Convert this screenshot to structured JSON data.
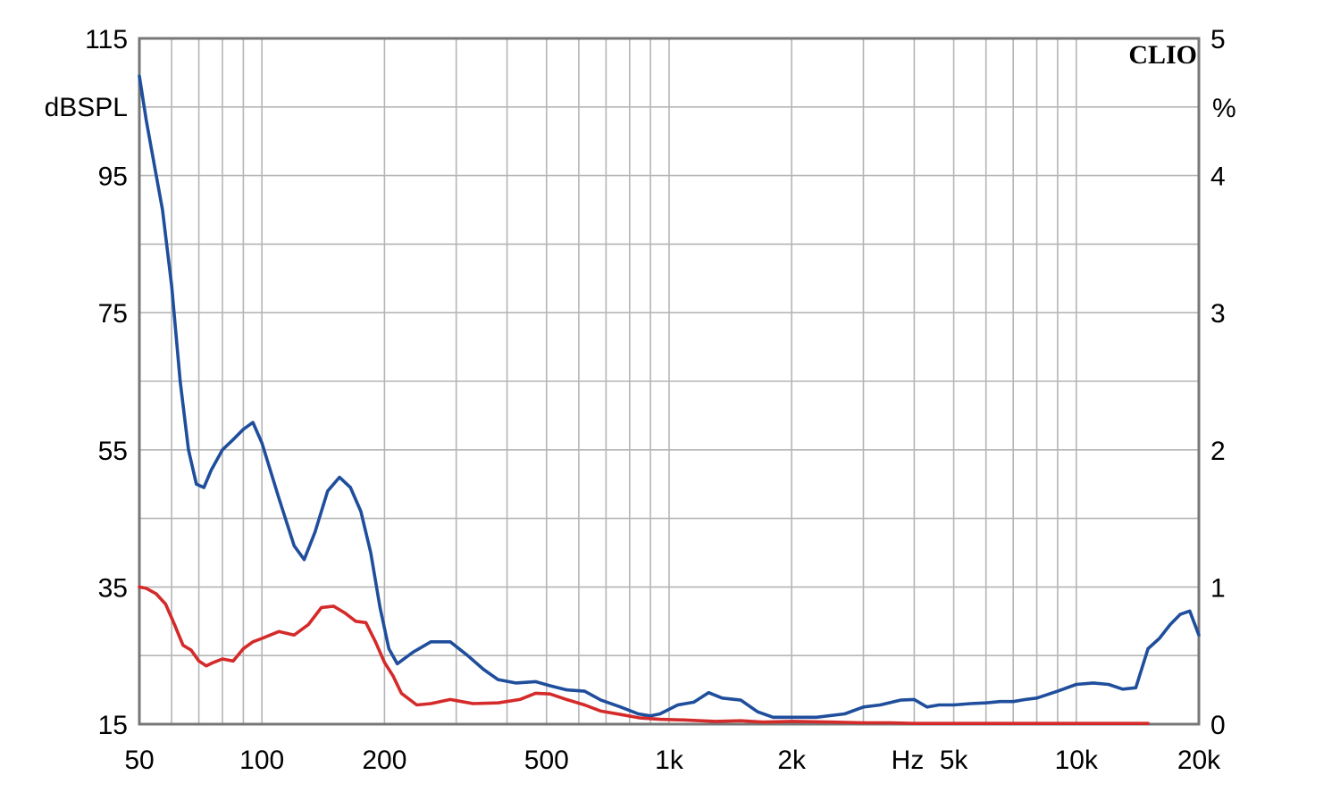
{
  "chart_data": {
    "type": "line",
    "x_scale": "log",
    "xlim": [
      50,
      20000
    ],
    "ylim_left": [
      15,
      115
    ],
    "ylim_right": [
      0,
      5
    ],
    "grid": true,
    "brand_label": "CLIO",
    "left_unit_label": "dBSPL",
    "right_unit_label": "%",
    "x_unit_label": "Hz",
    "x_ticks": [
      {
        "value": 50,
        "label": "50"
      },
      {
        "value": 100,
        "label": "100"
      },
      {
        "value": 200,
        "label": "200"
      },
      {
        "value": 500,
        "label": "500"
      },
      {
        "value": 1000,
        "label": "1k"
      },
      {
        "value": 2000,
        "label": "2k"
      },
      {
        "value": 5000,
        "label": "5k"
      },
      {
        "value": 10000,
        "label": "10k"
      },
      {
        "value": 20000,
        "label": "20k"
      }
    ],
    "y_left_ticks": [
      {
        "value": 115,
        "label": "115"
      },
      {
        "value": 95,
        "label": "95"
      },
      {
        "value": 75,
        "label": "75"
      },
      {
        "value": 55,
        "label": "55"
      },
      {
        "value": 35,
        "label": "35"
      },
      {
        "value": 15,
        "label": "15"
      }
    ],
    "y_right_ticks": [
      {
        "value": 5,
        "label": "5"
      },
      {
        "value": 4,
        "label": "4"
      },
      {
        "value": 3,
        "label": "3"
      },
      {
        "value": 2,
        "label": "2"
      },
      {
        "value": 1,
        "label": "1"
      },
      {
        "value": 0,
        "label": "0"
      }
    ],
    "series": [
      {
        "color": "#1f4e9c",
        "axis": "left",
        "x": [
          50,
          52,
          55,
          57,
          60,
          63,
          66,
          69,
          72,
          75,
          80,
          85,
          90,
          95,
          100,
          110,
          120,
          127,
          135,
          145,
          155,
          165,
          175,
          185,
          195,
          205,
          215,
          235,
          260,
          290,
          320,
          350,
          380,
          420,
          470,
          510,
          560,
          620,
          680,
          760,
          840,
          900,
          950,
          1050,
          1150,
          1250,
          1350,
          1500,
          1650,
          1800,
          2000,
          2300,
          2700,
          3000,
          3300,
          3700,
          4000,
          4300,
          4600,
          5000,
          5500,
          6000,
          6500,
          7000,
          7500,
          8000,
          9000,
          10000,
          11000,
          12000,
          13000,
          14000,
          15000,
          16000,
          17000,
          18000,
          19000,
          20000
        ],
        "y": [
          109.5,
          103,
          95,
          90,
          79,
          65,
          55,
          50,
          49.5,
          52,
          55,
          56.5,
          58,
          59,
          56,
          48,
          41,
          39,
          43,
          49,
          51,
          49.5,
          46,
          40,
          32,
          26,
          23.8,
          25.5,
          27,
          27,
          25,
          23,
          21.5,
          21,
          21.2,
          20.6,
          20,
          19.8,
          18.5,
          17.5,
          16.5,
          16.2,
          16.5,
          17.8,
          18.2,
          19.6,
          18.8,
          18.5,
          16.8,
          16,
          16,
          16,
          16.5,
          17.5,
          17.8,
          18.5,
          18.6,
          17.5,
          17.8,
          17.8,
          18,
          18.1,
          18.3,
          18.3,
          18.6,
          18.8,
          19.8,
          20.8,
          21,
          20.8,
          20.1,
          20.3,
          26,
          27.5,
          29.5,
          31,
          31.5,
          28
        ]
      },
      {
        "color": "#d42a2a",
        "axis": "left",
        "x": [
          50,
          52,
          55,
          58,
          61,
          64,
          67,
          70,
          73,
          76,
          80,
          85,
          90,
          95,
          100,
          110,
          120,
          130,
          140,
          150,
          160,
          170,
          180,
          190,
          200,
          210,
          220,
          240,
          260,
          290,
          330,
          380,
          430,
          470,
          510,
          560,
          620,
          680,
          760,
          850,
          950,
          1100,
          1300,
          1500,
          1700,
          2000,
          2500,
          3000,
          3500,
          4000,
          5000,
          6000,
          8000,
          10000,
          12000,
          14000,
          15000
        ],
        "y": [
          35,
          34.8,
          34,
          32.5,
          29.5,
          26.5,
          25.8,
          24.2,
          23.5,
          24,
          24.5,
          24.2,
          26,
          27,
          27.5,
          28.5,
          28,
          29.5,
          32,
          32.2,
          31.2,
          30,
          29.8,
          27,
          24,
          22,
          19.5,
          17.8,
          18,
          18.6,
          18,
          18.1,
          18.6,
          19.5,
          19.4,
          18.6,
          17.8,
          16.9,
          16.4,
          15.9,
          15.7,
          15.6,
          15.4,
          15.5,
          15.3,
          15.4,
          15.3,
          15.2,
          15.2,
          15.1,
          15.1,
          15.1,
          15.1,
          15.1,
          15.1,
          15.1,
          15.1
        ]
      }
    ]
  }
}
